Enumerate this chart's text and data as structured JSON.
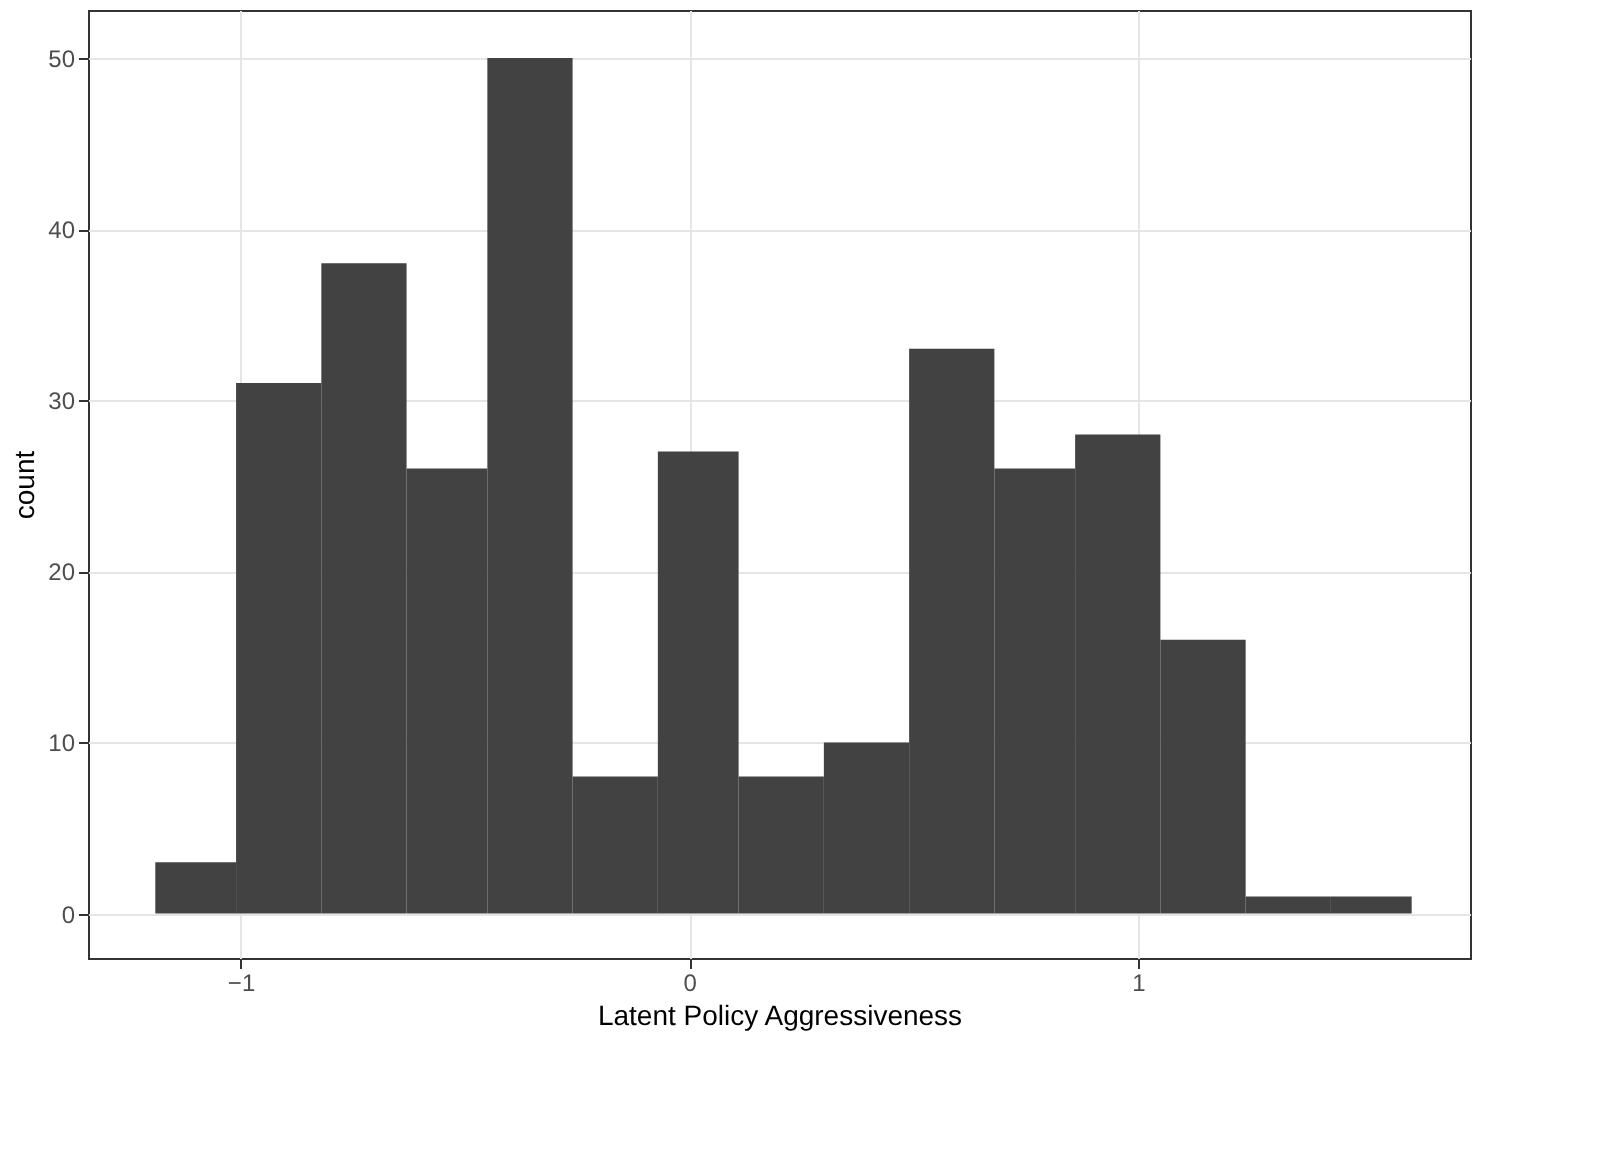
{
  "chart_data": {
    "type": "histogram",
    "xlabel": "Latent Policy Aggressiveness",
    "ylabel": "count",
    "bins": [
      -1.19,
      -1.01,
      -0.82,
      -0.63,
      -0.45,
      -0.26,
      -0.07,
      0.11,
      0.3,
      0.49,
      0.68,
      0.86,
      1.05,
      1.24,
      1.43,
      1.61
    ],
    "values": [
      3,
      31,
      38,
      26,
      50,
      8,
      27,
      8,
      10,
      33,
      26,
      28,
      16,
      1,
      1
    ],
    "color": "#424242",
    "xlim": [
      -1.34,
      1.74
    ],
    "ylim": [
      -2.6,
      52.8
    ],
    "xticks": [
      -1,
      0,
      1
    ],
    "yticks": [
      0,
      10,
      20,
      30,
      40,
      50
    ],
    "grid": true
  }
}
